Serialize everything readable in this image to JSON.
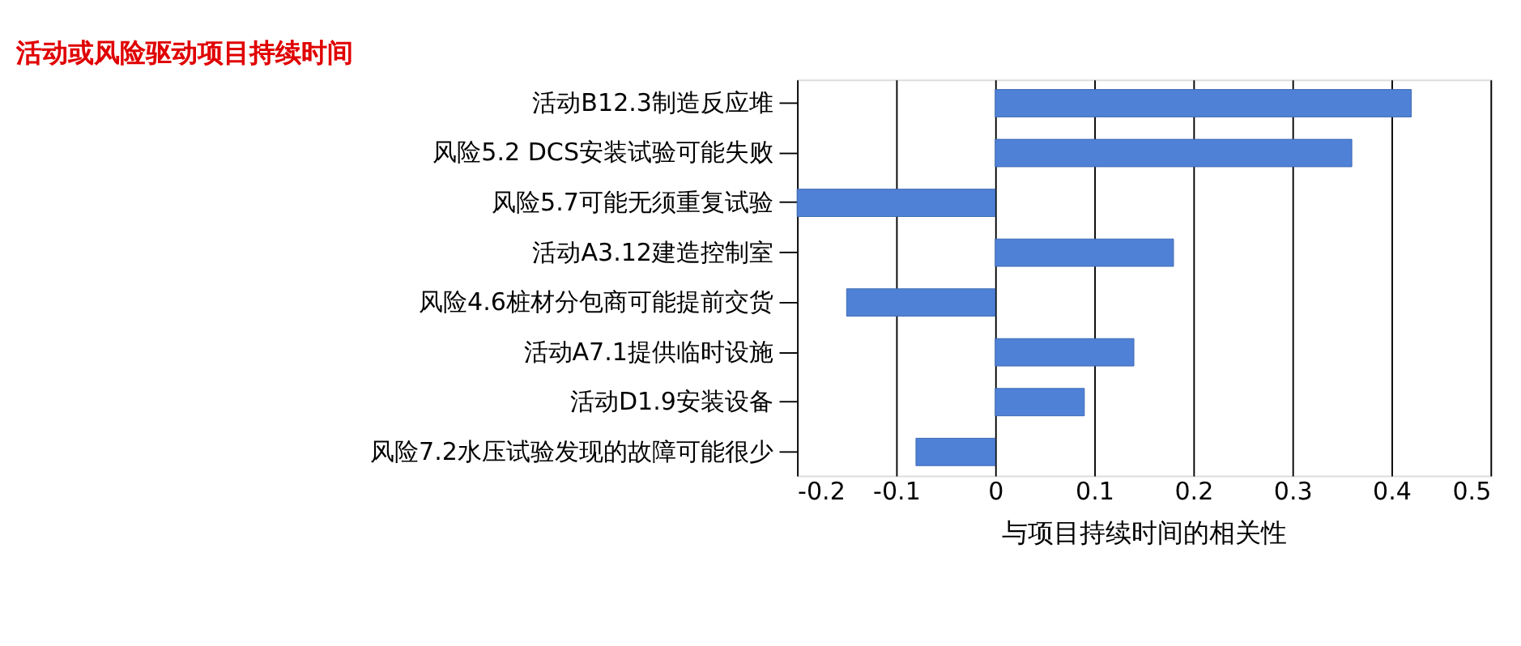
{
  "chart_data": {
    "type": "bar",
    "orientation": "horizontal",
    "title": "活动或风险驱动项目持续时间",
    "xlabel": "与项目持续时间的相关性",
    "categories": [
      "活动B12.3制造反应堆",
      "风险5.2 DCS安装试验可能失败",
      "风险5.7可能无须重复试验",
      "活动A3.12建造控制室",
      "风险4.6桩材分包商可能提前交货",
      "活动A7.1提供临时设施",
      "活动D1.9安装设备",
      "风险7.2水压试验发现的故障可能很少"
    ],
    "values": [
      0.42,
      0.36,
      -0.2,
      0.18,
      -0.15,
      0.14,
      0.09,
      -0.08
    ],
    "color": "#4f81d6",
    "xlim": [
      -0.2,
      0.5
    ],
    "xticks": [
      -0.2,
      -0.1,
      0,
      0.1,
      0.2,
      0.3,
      0.4,
      0.5
    ],
    "grid": "x"
  }
}
